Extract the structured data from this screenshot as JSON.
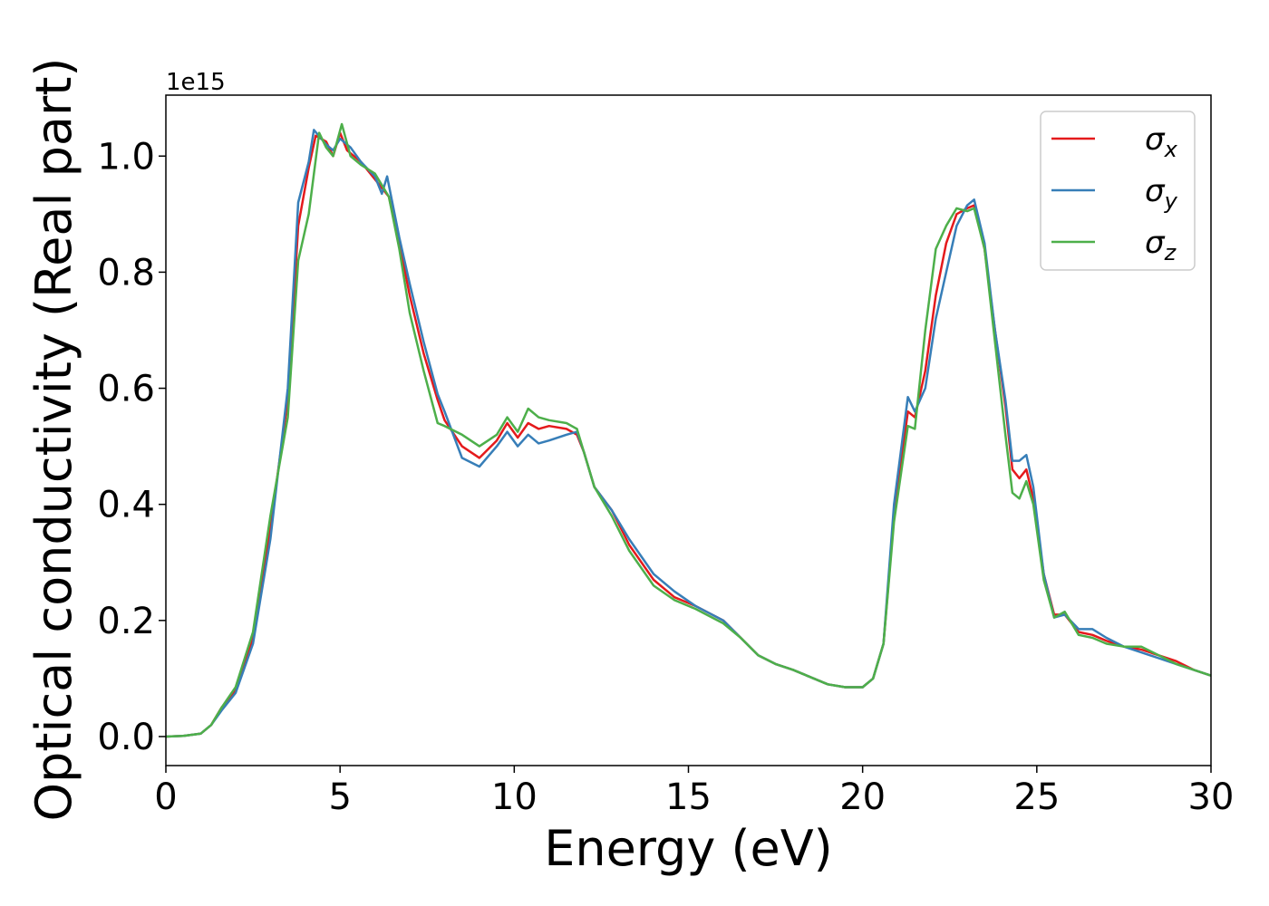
{
  "chart_data": {
    "type": "line",
    "xlabel": "Energy (eV)",
    "ylabel": "Optical conductivity (Real part)",
    "offset_text": "1e15",
    "xlim": [
      0,
      30
    ],
    "ylim": [
      -0.05,
      1.105
    ],
    "xticks": [
      0,
      5,
      10,
      15,
      20,
      25,
      30
    ],
    "yticks": [
      0.0,
      0.2,
      0.4,
      0.6,
      0.8,
      1.0
    ],
    "xtick_labels": [
      "0",
      "5",
      "10",
      "15",
      "20",
      "25",
      "30"
    ],
    "ytick_labels": [
      "0.0",
      "0.2",
      "0.4",
      "0.6",
      "0.8",
      "1.0"
    ],
    "grid": false,
    "legend_position": "top-right",
    "series": [
      {
        "name": "σx",
        "symbol": "σ",
        "subscript": "x",
        "color": "#e41a1c",
        "points": [
          [
            0,
            0
          ],
          [
            0.5,
            0.001
          ],
          [
            1.0,
            0.005
          ],
          [
            1.3,
            0.02
          ],
          [
            1.6,
            0.05
          ],
          [
            2.0,
            0.08
          ],
          [
            2.5,
            0.17
          ],
          [
            3.0,
            0.36
          ],
          [
            3.5,
            0.58
          ],
          [
            3.8,
            0.88
          ],
          [
            4.1,
            0.98
          ],
          [
            4.3,
            1.035
          ],
          [
            4.6,
            1.025
          ],
          [
            4.8,
            1.0
          ],
          [
            5.0,
            1.04
          ],
          [
            5.2,
            1.01
          ],
          [
            5.6,
            0.99
          ],
          [
            6.0,
            0.96
          ],
          [
            6.2,
            0.945
          ],
          [
            6.4,
            0.93
          ],
          [
            6.7,
            0.85
          ],
          [
            7.0,
            0.76
          ],
          [
            7.4,
            0.66
          ],
          [
            7.8,
            0.58
          ],
          [
            8.0,
            0.545
          ],
          [
            8.5,
            0.5
          ],
          [
            9.0,
            0.48
          ],
          [
            9.5,
            0.51
          ],
          [
            9.8,
            0.54
          ],
          [
            10.1,
            0.515
          ],
          [
            10.4,
            0.54
          ],
          [
            10.7,
            0.53
          ],
          [
            11.0,
            0.535
          ],
          [
            11.5,
            0.53
          ],
          [
            11.8,
            0.52
          ],
          [
            12.0,
            0.49
          ],
          [
            12.3,
            0.43
          ],
          [
            12.8,
            0.39
          ],
          [
            13.3,
            0.33
          ],
          [
            14.0,
            0.27
          ],
          [
            14.6,
            0.24
          ],
          [
            15.2,
            0.225
          ],
          [
            16.0,
            0.2
          ],
          [
            16.5,
            0.17
          ],
          [
            17.0,
            0.14
          ],
          [
            17.5,
            0.125
          ],
          [
            18.0,
            0.115
          ],
          [
            19.0,
            0.09
          ],
          [
            19.5,
            0.085
          ],
          [
            20.0,
            0.085
          ],
          [
            20.3,
            0.1
          ],
          [
            20.6,
            0.16
          ],
          [
            20.9,
            0.38
          ],
          [
            21.3,
            0.56
          ],
          [
            21.5,
            0.55
          ],
          [
            21.8,
            0.63
          ],
          [
            22.1,
            0.76
          ],
          [
            22.4,
            0.85
          ],
          [
            22.7,
            0.9
          ],
          [
            23.0,
            0.91
          ],
          [
            23.2,
            0.915
          ],
          [
            23.5,
            0.84
          ],
          [
            23.8,
            0.7
          ],
          [
            24.1,
            0.57
          ],
          [
            24.3,
            0.46
          ],
          [
            24.5,
            0.445
          ],
          [
            24.7,
            0.46
          ],
          [
            24.9,
            0.41
          ],
          [
            25.2,
            0.28
          ],
          [
            25.5,
            0.21
          ],
          [
            25.8,
            0.21
          ],
          [
            26.2,
            0.18
          ],
          [
            26.6,
            0.175
          ],
          [
            27.0,
            0.165
          ],
          [
            27.5,
            0.155
          ],
          [
            28.0,
            0.15
          ],
          [
            28.5,
            0.14
          ],
          [
            29.0,
            0.13
          ],
          [
            29.5,
            0.115
          ],
          [
            30.0,
            0.105
          ]
        ]
      },
      {
        "name": "σy",
        "symbol": "σ",
        "subscript": "y",
        "color": "#377eb8",
        "points": [
          [
            0,
            0
          ],
          [
            0.5,
            0.001
          ],
          [
            1.0,
            0.005
          ],
          [
            1.3,
            0.02
          ],
          [
            1.6,
            0.045
          ],
          [
            2.0,
            0.075
          ],
          [
            2.5,
            0.16
          ],
          [
            3.0,
            0.34
          ],
          [
            3.5,
            0.6
          ],
          [
            3.8,
            0.92
          ],
          [
            4.1,
            0.99
          ],
          [
            4.25,
            1.045
          ],
          [
            4.6,
            1.02
          ],
          [
            4.8,
            1.01
          ],
          [
            5.0,
            1.03
          ],
          [
            5.3,
            1.015
          ],
          [
            5.6,
            0.99
          ],
          [
            6.0,
            0.965
          ],
          [
            6.2,
            0.935
          ],
          [
            6.35,
            0.965
          ],
          [
            6.7,
            0.86
          ],
          [
            7.0,
            0.78
          ],
          [
            7.4,
            0.68
          ],
          [
            7.8,
            0.59
          ],
          [
            8.0,
            0.56
          ],
          [
            8.5,
            0.48
          ],
          [
            9.0,
            0.465
          ],
          [
            9.5,
            0.5
          ],
          [
            9.8,
            0.525
          ],
          [
            10.1,
            0.5
          ],
          [
            10.4,
            0.52
          ],
          [
            10.7,
            0.505
          ],
          [
            11.0,
            0.51
          ],
          [
            11.5,
            0.52
          ],
          [
            11.8,
            0.525
          ],
          [
            12.0,
            0.49
          ],
          [
            12.3,
            0.43
          ],
          [
            12.8,
            0.39
          ],
          [
            13.3,
            0.34
          ],
          [
            14.0,
            0.28
          ],
          [
            14.6,
            0.25
          ],
          [
            15.2,
            0.225
          ],
          [
            16.0,
            0.2
          ],
          [
            16.5,
            0.17
          ],
          [
            17.0,
            0.14
          ],
          [
            17.5,
            0.125
          ],
          [
            18.0,
            0.115
          ],
          [
            19.0,
            0.09
          ],
          [
            19.5,
            0.085
          ],
          [
            20.0,
            0.085
          ],
          [
            20.3,
            0.1
          ],
          [
            20.6,
            0.16
          ],
          [
            20.9,
            0.4
          ],
          [
            21.3,
            0.585
          ],
          [
            21.5,
            0.56
          ],
          [
            21.8,
            0.6
          ],
          [
            22.1,
            0.72
          ],
          [
            22.4,
            0.8
          ],
          [
            22.7,
            0.88
          ],
          [
            23.0,
            0.915
          ],
          [
            23.2,
            0.925
          ],
          [
            23.5,
            0.85
          ],
          [
            23.8,
            0.7
          ],
          [
            24.1,
            0.58
          ],
          [
            24.3,
            0.475
          ],
          [
            24.5,
            0.475
          ],
          [
            24.7,
            0.485
          ],
          [
            24.9,
            0.43
          ],
          [
            25.2,
            0.28
          ],
          [
            25.5,
            0.205
          ],
          [
            25.8,
            0.21
          ],
          [
            26.2,
            0.185
          ],
          [
            26.6,
            0.185
          ],
          [
            27.0,
            0.17
          ],
          [
            27.5,
            0.155
          ],
          [
            28.0,
            0.145
          ],
          [
            28.5,
            0.135
          ],
          [
            29.0,
            0.125
          ],
          [
            29.5,
            0.115
          ],
          [
            30.0,
            0.105
          ]
        ]
      },
      {
        "name": "σz",
        "symbol": "σ",
        "subscript": "z",
        "color": "#4daf4a",
        "points": [
          [
            0,
            0
          ],
          [
            0.5,
            0.001
          ],
          [
            1.0,
            0.005
          ],
          [
            1.3,
            0.02
          ],
          [
            1.6,
            0.05
          ],
          [
            2.0,
            0.085
          ],
          [
            2.5,
            0.18
          ],
          [
            3.0,
            0.38
          ],
          [
            3.5,
            0.55
          ],
          [
            3.8,
            0.82
          ],
          [
            4.1,
            0.9
          ],
          [
            4.4,
            1.04
          ],
          [
            4.6,
            1.015
          ],
          [
            4.8,
            1.0
          ],
          [
            5.05,
            1.055
          ],
          [
            5.3,
            1.0
          ],
          [
            5.6,
            0.985
          ],
          [
            6.0,
            0.97
          ],
          [
            6.2,
            0.95
          ],
          [
            6.4,
            0.93
          ],
          [
            6.7,
            0.84
          ],
          [
            7.0,
            0.73
          ],
          [
            7.4,
            0.63
          ],
          [
            7.8,
            0.54
          ],
          [
            8.0,
            0.535
          ],
          [
            8.5,
            0.52
          ],
          [
            9.0,
            0.5
          ],
          [
            9.5,
            0.52
          ],
          [
            9.8,
            0.55
          ],
          [
            10.1,
            0.525
          ],
          [
            10.4,
            0.565
          ],
          [
            10.7,
            0.55
          ],
          [
            11.0,
            0.545
          ],
          [
            11.5,
            0.54
          ],
          [
            11.8,
            0.53
          ],
          [
            12.0,
            0.49
          ],
          [
            12.3,
            0.43
          ],
          [
            12.8,
            0.38
          ],
          [
            13.3,
            0.32
          ],
          [
            14.0,
            0.26
          ],
          [
            14.6,
            0.235
          ],
          [
            15.2,
            0.22
          ],
          [
            16.0,
            0.195
          ],
          [
            16.5,
            0.17
          ],
          [
            17.0,
            0.14
          ],
          [
            17.5,
            0.125
          ],
          [
            18.0,
            0.115
          ],
          [
            19.0,
            0.09
          ],
          [
            19.5,
            0.085
          ],
          [
            20.0,
            0.085
          ],
          [
            20.3,
            0.1
          ],
          [
            20.6,
            0.16
          ],
          [
            20.9,
            0.37
          ],
          [
            21.3,
            0.535
          ],
          [
            21.5,
            0.53
          ],
          [
            21.8,
            0.7
          ],
          [
            22.1,
            0.84
          ],
          [
            22.4,
            0.88
          ],
          [
            22.7,
            0.91
          ],
          [
            23.0,
            0.905
          ],
          [
            23.2,
            0.91
          ],
          [
            23.5,
            0.84
          ],
          [
            23.8,
            0.68
          ],
          [
            24.1,
            0.52
          ],
          [
            24.3,
            0.42
          ],
          [
            24.5,
            0.41
          ],
          [
            24.7,
            0.44
          ],
          [
            24.9,
            0.4
          ],
          [
            25.2,
            0.27
          ],
          [
            25.5,
            0.205
          ],
          [
            25.8,
            0.215
          ],
          [
            26.2,
            0.175
          ],
          [
            26.6,
            0.17
          ],
          [
            27.0,
            0.16
          ],
          [
            27.5,
            0.155
          ],
          [
            28.0,
            0.155
          ],
          [
            28.5,
            0.14
          ],
          [
            29.0,
            0.125
          ],
          [
            29.5,
            0.115
          ],
          [
            30.0,
            0.105
          ]
        ]
      }
    ]
  }
}
